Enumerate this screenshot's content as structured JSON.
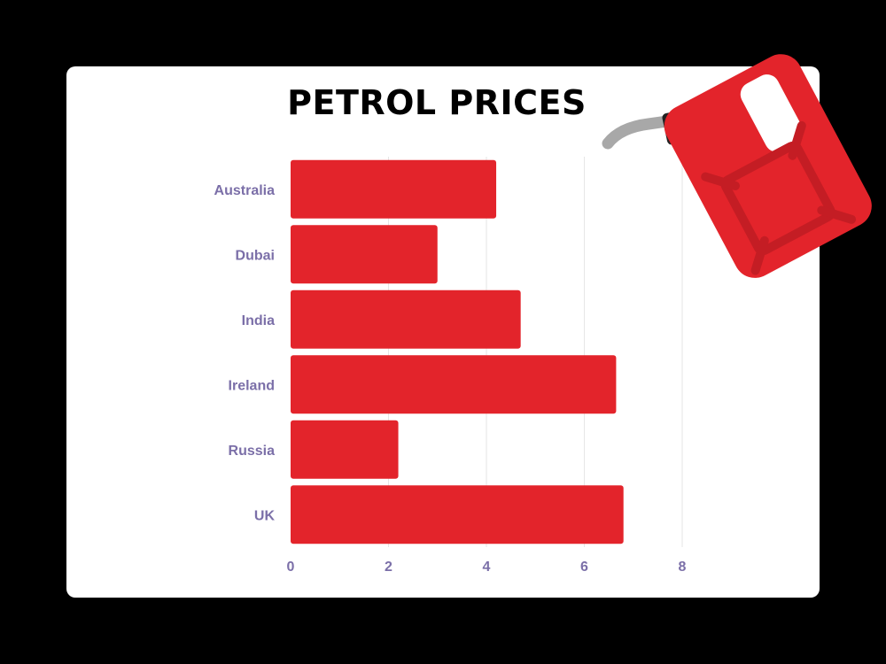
{
  "colors": {
    "background": "#000000",
    "card": "#ffffff",
    "bar": "#e3242b",
    "label": "#7b6fa8",
    "grid": "#e6e6e6",
    "can_body": "#e3242b",
    "can_emboss": "#c41d24",
    "can_cap": "#222222",
    "can_spout": "#a8a8a8"
  },
  "chart_data": {
    "type": "bar",
    "orientation": "horizontal",
    "title": "PETROL PRICES",
    "categories": [
      "Australia",
      "Dubai",
      "India",
      "Ireland",
      "Russia",
      "UK"
    ],
    "values": [
      4.2,
      3.0,
      4.7,
      6.65,
      2.2,
      6.8
    ],
    "xlim": [
      0,
      8
    ],
    "xticks": [
      "0",
      "2",
      "4",
      "6",
      "8"
    ],
    "xlabel": "",
    "ylabel": "",
    "grid": "vertical",
    "legend": "none"
  },
  "decoration": {
    "icon": "petrol-can-icon"
  }
}
